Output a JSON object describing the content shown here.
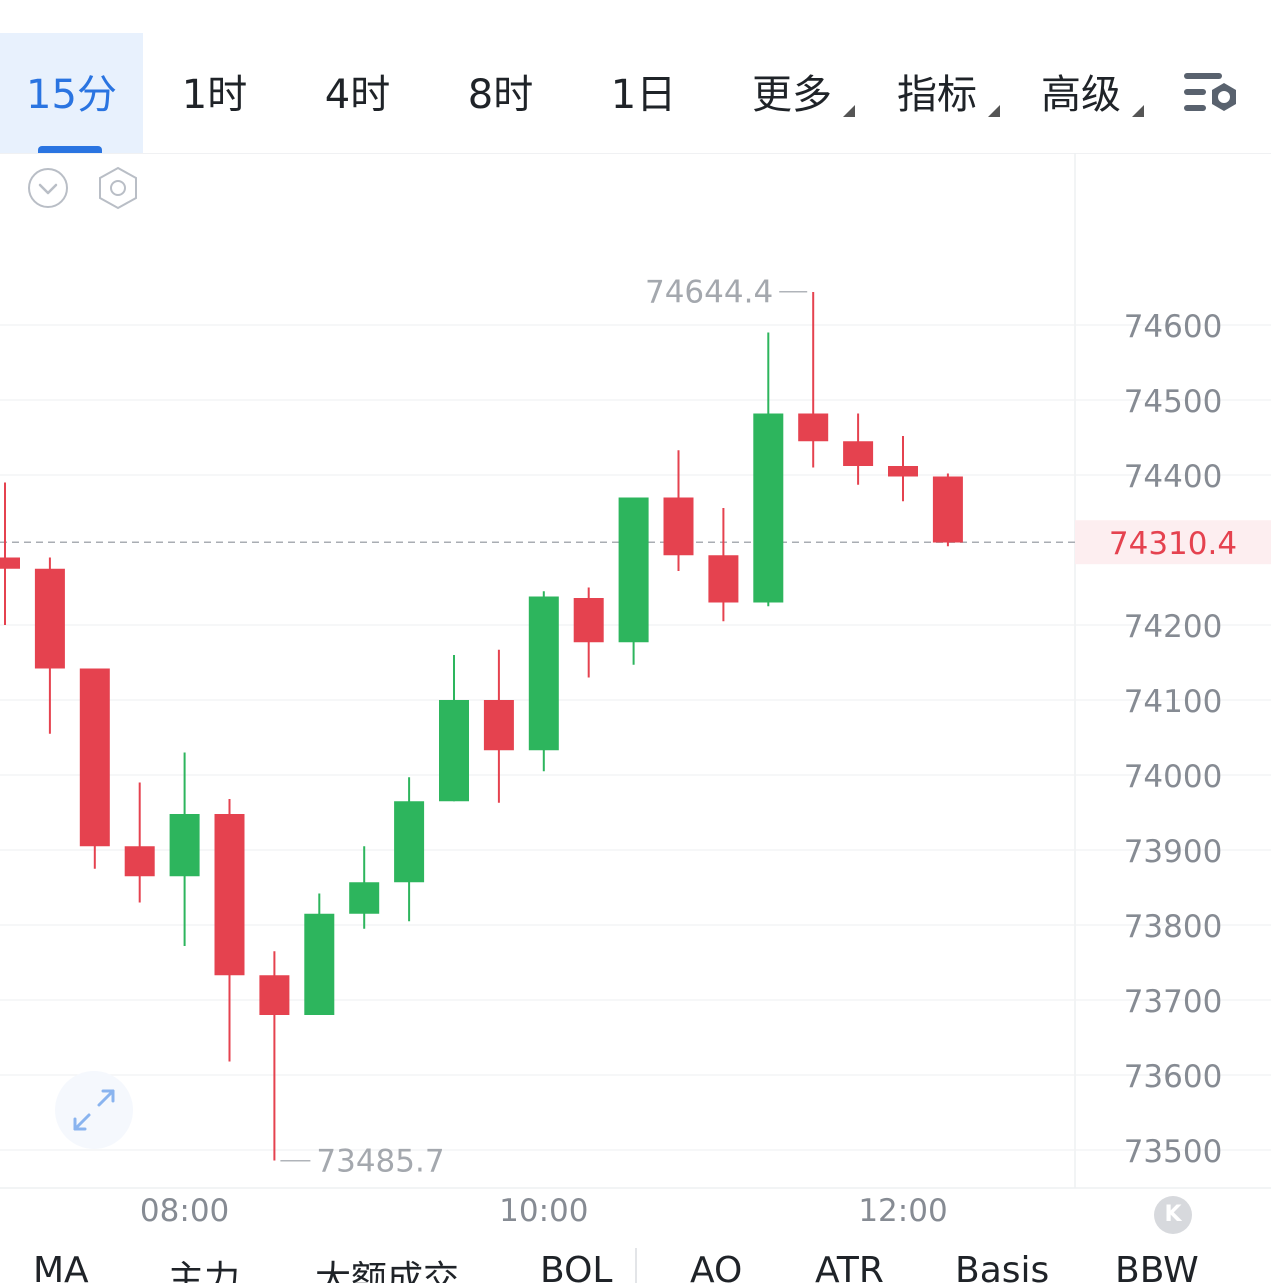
{
  "tabs": [
    {
      "label": "15分",
      "active": true
    },
    {
      "label": "1时",
      "active": false
    },
    {
      "label": "4时",
      "active": false
    },
    {
      "label": "8时",
      "active": false
    },
    {
      "label": "1日",
      "active": false
    }
  ],
  "menus": [
    {
      "label": "更多"
    },
    {
      "label": "指标"
    },
    {
      "label": "高级"
    }
  ],
  "icons": {
    "chart_settings": "chart-settings-icon",
    "collapse": "chevron-down-circle-icon",
    "settings": "hexagon-settings-icon",
    "expand": "expand-arrows-icon"
  },
  "colors": {
    "up": "#2db55d",
    "down": "#e5424f",
    "accent": "#2a74e1",
    "price_label": "#e5424f"
  },
  "chart_data": {
    "type": "candlestick",
    "interval": "15分",
    "y_axis_ticks": [
      74600,
      74500,
      74400,
      74200,
      74100,
      74000,
      73900,
      73800,
      73700,
      73600,
      73500
    ],
    "y_axis_tick_labels": [
      "74600",
      "74500",
      "74400",
      "74200",
      "74100",
      "74000",
      "73900",
      "73800",
      "73700",
      "73600",
      "73500"
    ],
    "x_axis_labels": [
      {
        "time": "08:00"
      },
      {
        "time": "10:00"
      },
      {
        "time": "12:00"
      }
    ],
    "current_price": "74310.4",
    "annotations": {
      "high": {
        "label": "74644.4",
        "value": 74644.4
      },
      "low": {
        "label": "73485.7",
        "value": 73485.7
      }
    },
    "candles": [
      {
        "open": 74290,
        "close": 74275,
        "high": 74390,
        "low": 74200
      },
      {
        "open": 74275,
        "close": 74142,
        "high": 74290,
        "low": 74055
      },
      {
        "open": 74142,
        "close": 73905,
        "high": 74142,
        "low": 73875
      },
      {
        "open": 73905,
        "close": 73865,
        "high": 73990,
        "low": 73830
      },
      {
        "open": 73865,
        "close": 73948,
        "high": 74030,
        "low": 73772
      },
      {
        "open": 73948,
        "close": 73733,
        "high": 73968,
        "low": 73618
      },
      {
        "open": 73733,
        "close": 73680,
        "high": 73765,
        "low": 73486
      },
      {
        "open": 73680,
        "close": 73815,
        "high": 73842,
        "low": 73680
      },
      {
        "open": 73815,
        "close": 73857,
        "high": 73905,
        "low": 73795
      },
      {
        "open": 73857,
        "close": 73965,
        "high": 73997,
        "low": 73805
      },
      {
        "open": 73965,
        "close": 74100,
        "high": 74160,
        "low": 73965
      },
      {
        "open": 74100,
        "close": 74033,
        "high": 74167,
        "low": 73963
      },
      {
        "open": 74033,
        "close": 74238,
        "high": 74245,
        "low": 74005
      },
      {
        "open": 74236,
        "close": 74177,
        "high": 74250,
        "low": 74130
      },
      {
        "open": 74177,
        "close": 74370,
        "high": 74370,
        "low": 74147
      },
      {
        "open": 74370,
        "close": 74293,
        "high": 74433,
        "low": 74272
      },
      {
        "open": 74293,
        "close": 74230,
        "high": 74356,
        "low": 74205
      },
      {
        "open": 74230,
        "close": 74482,
        "high": 74590,
        "low": 74225
      },
      {
        "open": 74482,
        "close": 74445,
        "high": 74644,
        "low": 74410
      },
      {
        "open": 74445,
        "close": 74412,
        "high": 74482,
        "low": 74387
      },
      {
        "open": 74412,
        "close": 74398,
        "high": 74452,
        "low": 74365
      },
      {
        "open": 74398,
        "close": 74310,
        "high": 74402,
        "low": 74305
      }
    ]
  },
  "indicator_tabs": [
    "MA",
    "主力",
    "大额成交",
    "BOL",
    "AO",
    "ATR",
    "Basis",
    "BBW"
  ],
  "k_button": "K"
}
